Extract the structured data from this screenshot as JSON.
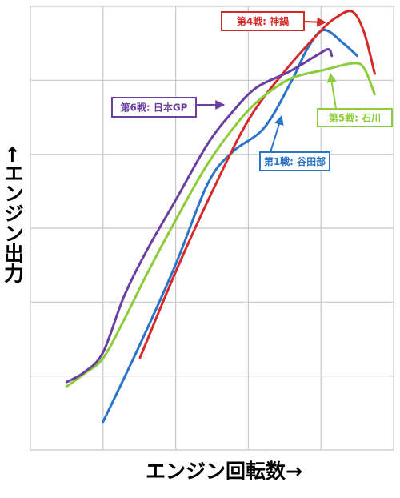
{
  "chart_data": {
    "type": "line",
    "xlabel": "エンジン回転数→",
    "ylabel": "←エンジン出力",
    "xlim": [
      0,
      5
    ],
    "ylim": [
      0,
      6
    ],
    "xticks": [
      0,
      1,
      2,
      3,
      4,
      5
    ],
    "yticks": [
      0,
      1,
      2,
      3,
      4,
      5,
      6
    ],
    "grid": true,
    "series": [
      {
        "name": "第1戦: 谷田部",
        "color": "#2a74c9",
        "x": [
          1.0,
          1.51,
          2.0,
          2.44,
          2.78,
          3.22,
          3.6,
          3.82,
          4.04,
          4.32,
          4.5
        ],
        "values": [
          0.38,
          1.43,
          2.51,
          3.6,
          4.03,
          4.36,
          5.0,
          5.44,
          5.68,
          5.49,
          5.33
        ]
      },
      {
        "name": "第4戦: 神鍋",
        "color": "#d42a2a",
        "x": [
          1.51,
          2.0,
          2.5,
          3.0,
          3.49,
          3.99,
          4.21,
          4.43,
          4.59,
          4.74
        ],
        "values": [
          1.25,
          2.41,
          3.49,
          4.46,
          5.11,
          5.66,
          5.85,
          5.93,
          5.66,
          5.09
        ]
      },
      {
        "name": "第5戦: 石川",
        "color": "#8ccc3a",
        "x": [
          0.5,
          0.74,
          1.0,
          1.29,
          1.62,
          2.0,
          2.44,
          2.88,
          3.22,
          3.6,
          4.04,
          4.43,
          4.59,
          4.74
        ],
        "values": [
          0.86,
          1.03,
          1.24,
          1.76,
          2.41,
          3.11,
          3.87,
          4.46,
          4.79,
          5.03,
          5.14,
          5.23,
          5.17,
          4.81
        ]
      },
      {
        "name": "第6戦: 日本GP",
        "color": "#6a3fa0",
        "x": [
          0.5,
          0.74,
          1.0,
          1.29,
          1.62,
          2.0,
          2.44,
          2.78,
          3.11,
          3.55,
          3.93,
          4.1,
          4.15
        ],
        "values": [
          0.92,
          1.05,
          1.32,
          2.08,
          2.73,
          3.38,
          4.14,
          4.57,
          4.9,
          5.11,
          5.33,
          5.42,
          5.33
        ]
      }
    ]
  }
}
